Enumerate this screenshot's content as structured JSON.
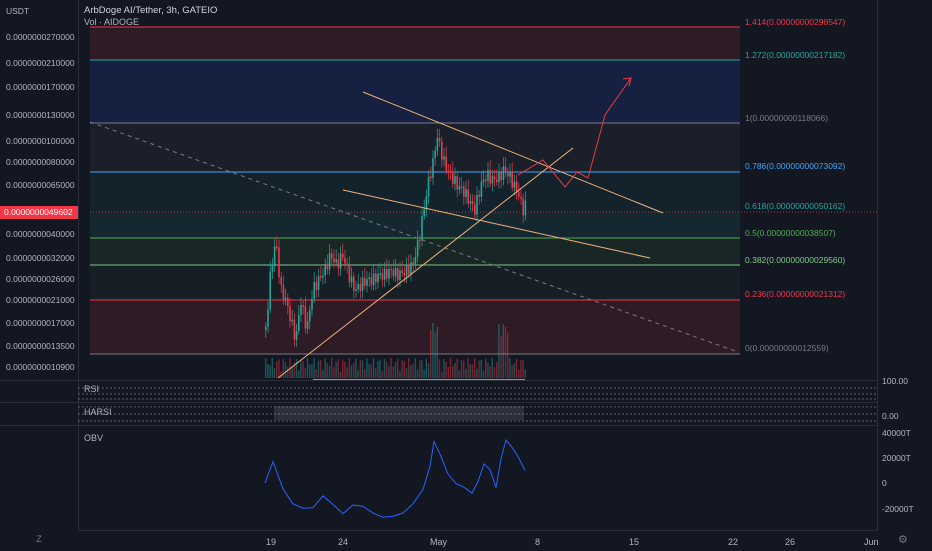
{
  "header": {
    "pair": "ArbDoge AI/Tether, 3h, GATEIO",
    "volume_label": "Vol · AIDOGE",
    "currency": "USDT"
  },
  "price_axis": [
    "0.0000000270000",
    "0.0000000210000",
    "0.0000000170000",
    "0.0000000130000",
    "0.0000000100000",
    "0.0000000080000",
    "0.0000000065000",
    "0.0000000040000",
    "0.0000000032000",
    "0.0000000026000",
    "0.0000000021000",
    "0.0000000017000",
    "0.0000000013500",
    "0.0000000010900"
  ],
  "current_price": "0.0000000049602",
  "fib_levels": [
    {
      "label": "1.414(0.00000000298547)",
      "color": "#f23645"
    },
    {
      "label": "1.272(0.00000000217182)",
      "color": "#26a69a"
    },
    {
      "label": "1(0.00000000118066)",
      "color": "#787b86"
    },
    {
      "label": "0.786(0.00000000073092)",
      "color": "#42a5f5"
    },
    {
      "label": "0.618(0.00000000050162)",
      "color": "#26a69a"
    },
    {
      "label": "0.5(0.00000000038507)",
      "color": "#4caf50"
    },
    {
      "label": "0.382(0.00000000029560)",
      "color": "#81c784"
    },
    {
      "label": "0.236(0.00000000021312)",
      "color": "#f23645"
    },
    {
      "label": "0(0.00000000012559)",
      "color": "#787b86"
    }
  ],
  "panes": {
    "rsi": "RSI",
    "harsi": "HARSI",
    "obv": "OBV"
  },
  "right_axis": {
    "rsi_top": "100.00",
    "harsi": "0.00",
    "obv": [
      "40000T",
      "20000T",
      "0",
      "-20000T"
    ]
  },
  "time_axis": [
    "19",
    "24",
    "May",
    "8",
    "15",
    "22",
    "26",
    "Jun"
  ],
  "bottom": {
    "scale_icon": "Z",
    "gear_icon": "gear-icon"
  },
  "colors": {
    "up": "#26a69a",
    "down": "#f23645",
    "pattern": "#f0b27a",
    "obv": "#2962ff"
  }
}
